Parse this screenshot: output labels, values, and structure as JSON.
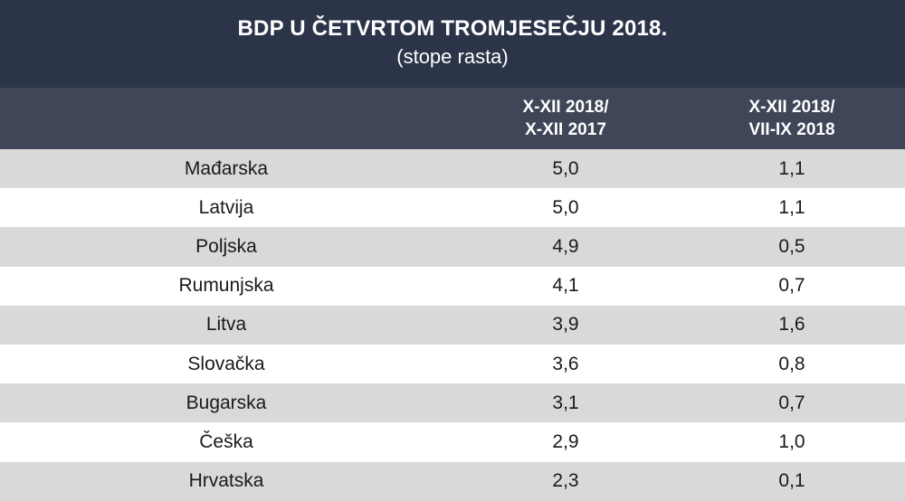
{
  "title": "BDP U ČETVRTOM TROMJESEČJU 2018.",
  "subtitle": "(stope rasta)",
  "columns": {
    "a_line1": "X-XII 2018/",
    "a_line2": "X-XII 2017",
    "b_line1": "X-XII 2018/",
    "b_line2": "VII-IX 2018"
  },
  "rows": [
    {
      "country": "Mađarska",
      "a": "5,0",
      "b": "1,1"
    },
    {
      "country": "Latvija",
      "a": "5,0",
      "b": "1,1"
    },
    {
      "country": "Poljska",
      "a": "4,9",
      "b": "0,5"
    },
    {
      "country": "Rumunjska",
      "a": "4,1",
      "b": "0,7"
    },
    {
      "country": "Litva",
      "a": "3,9",
      "b": "1,6"
    },
    {
      "country": "Slovačka",
      "a": "3,6",
      "b": "0,8"
    },
    {
      "country": "Bugarska",
      "a": "3,1",
      "b": "0,7"
    },
    {
      "country": "Češka",
      "a": "2,9",
      "b": "1,0"
    },
    {
      "country": "Hrvatska",
      "a": "2,3",
      "b": "0,1"
    }
  ],
  "chart_data": {
    "type": "table",
    "title": "BDP U ČETVRTOM TROMJESEČJU 2018.",
    "subtitle": "(stope rasta)",
    "columns": [
      "",
      "X-XII 2018/ X-XII 2017",
      "X-XII 2018/ VII-IX 2018"
    ],
    "rows": [
      [
        "Mađarska",
        5.0,
        1.1
      ],
      [
        "Latvija",
        5.0,
        1.1
      ],
      [
        "Poljska",
        4.9,
        0.5
      ],
      [
        "Rumunjska",
        4.1,
        0.7
      ],
      [
        "Litva",
        3.9,
        1.6
      ],
      [
        "Slovačka",
        3.6,
        0.8
      ],
      [
        "Bugarska",
        3.1,
        0.7
      ],
      [
        "Češka",
        2.9,
        1.0
      ],
      [
        "Hrvatska",
        2.3,
        0.1
      ]
    ]
  },
  "colors": {
    "title_bg": "#2b3448",
    "header_bg": "#3e4658",
    "row_alt_bg": "#d9d9d9",
    "text_light": "#ffffff",
    "text_dark": "#1a1a1a"
  }
}
